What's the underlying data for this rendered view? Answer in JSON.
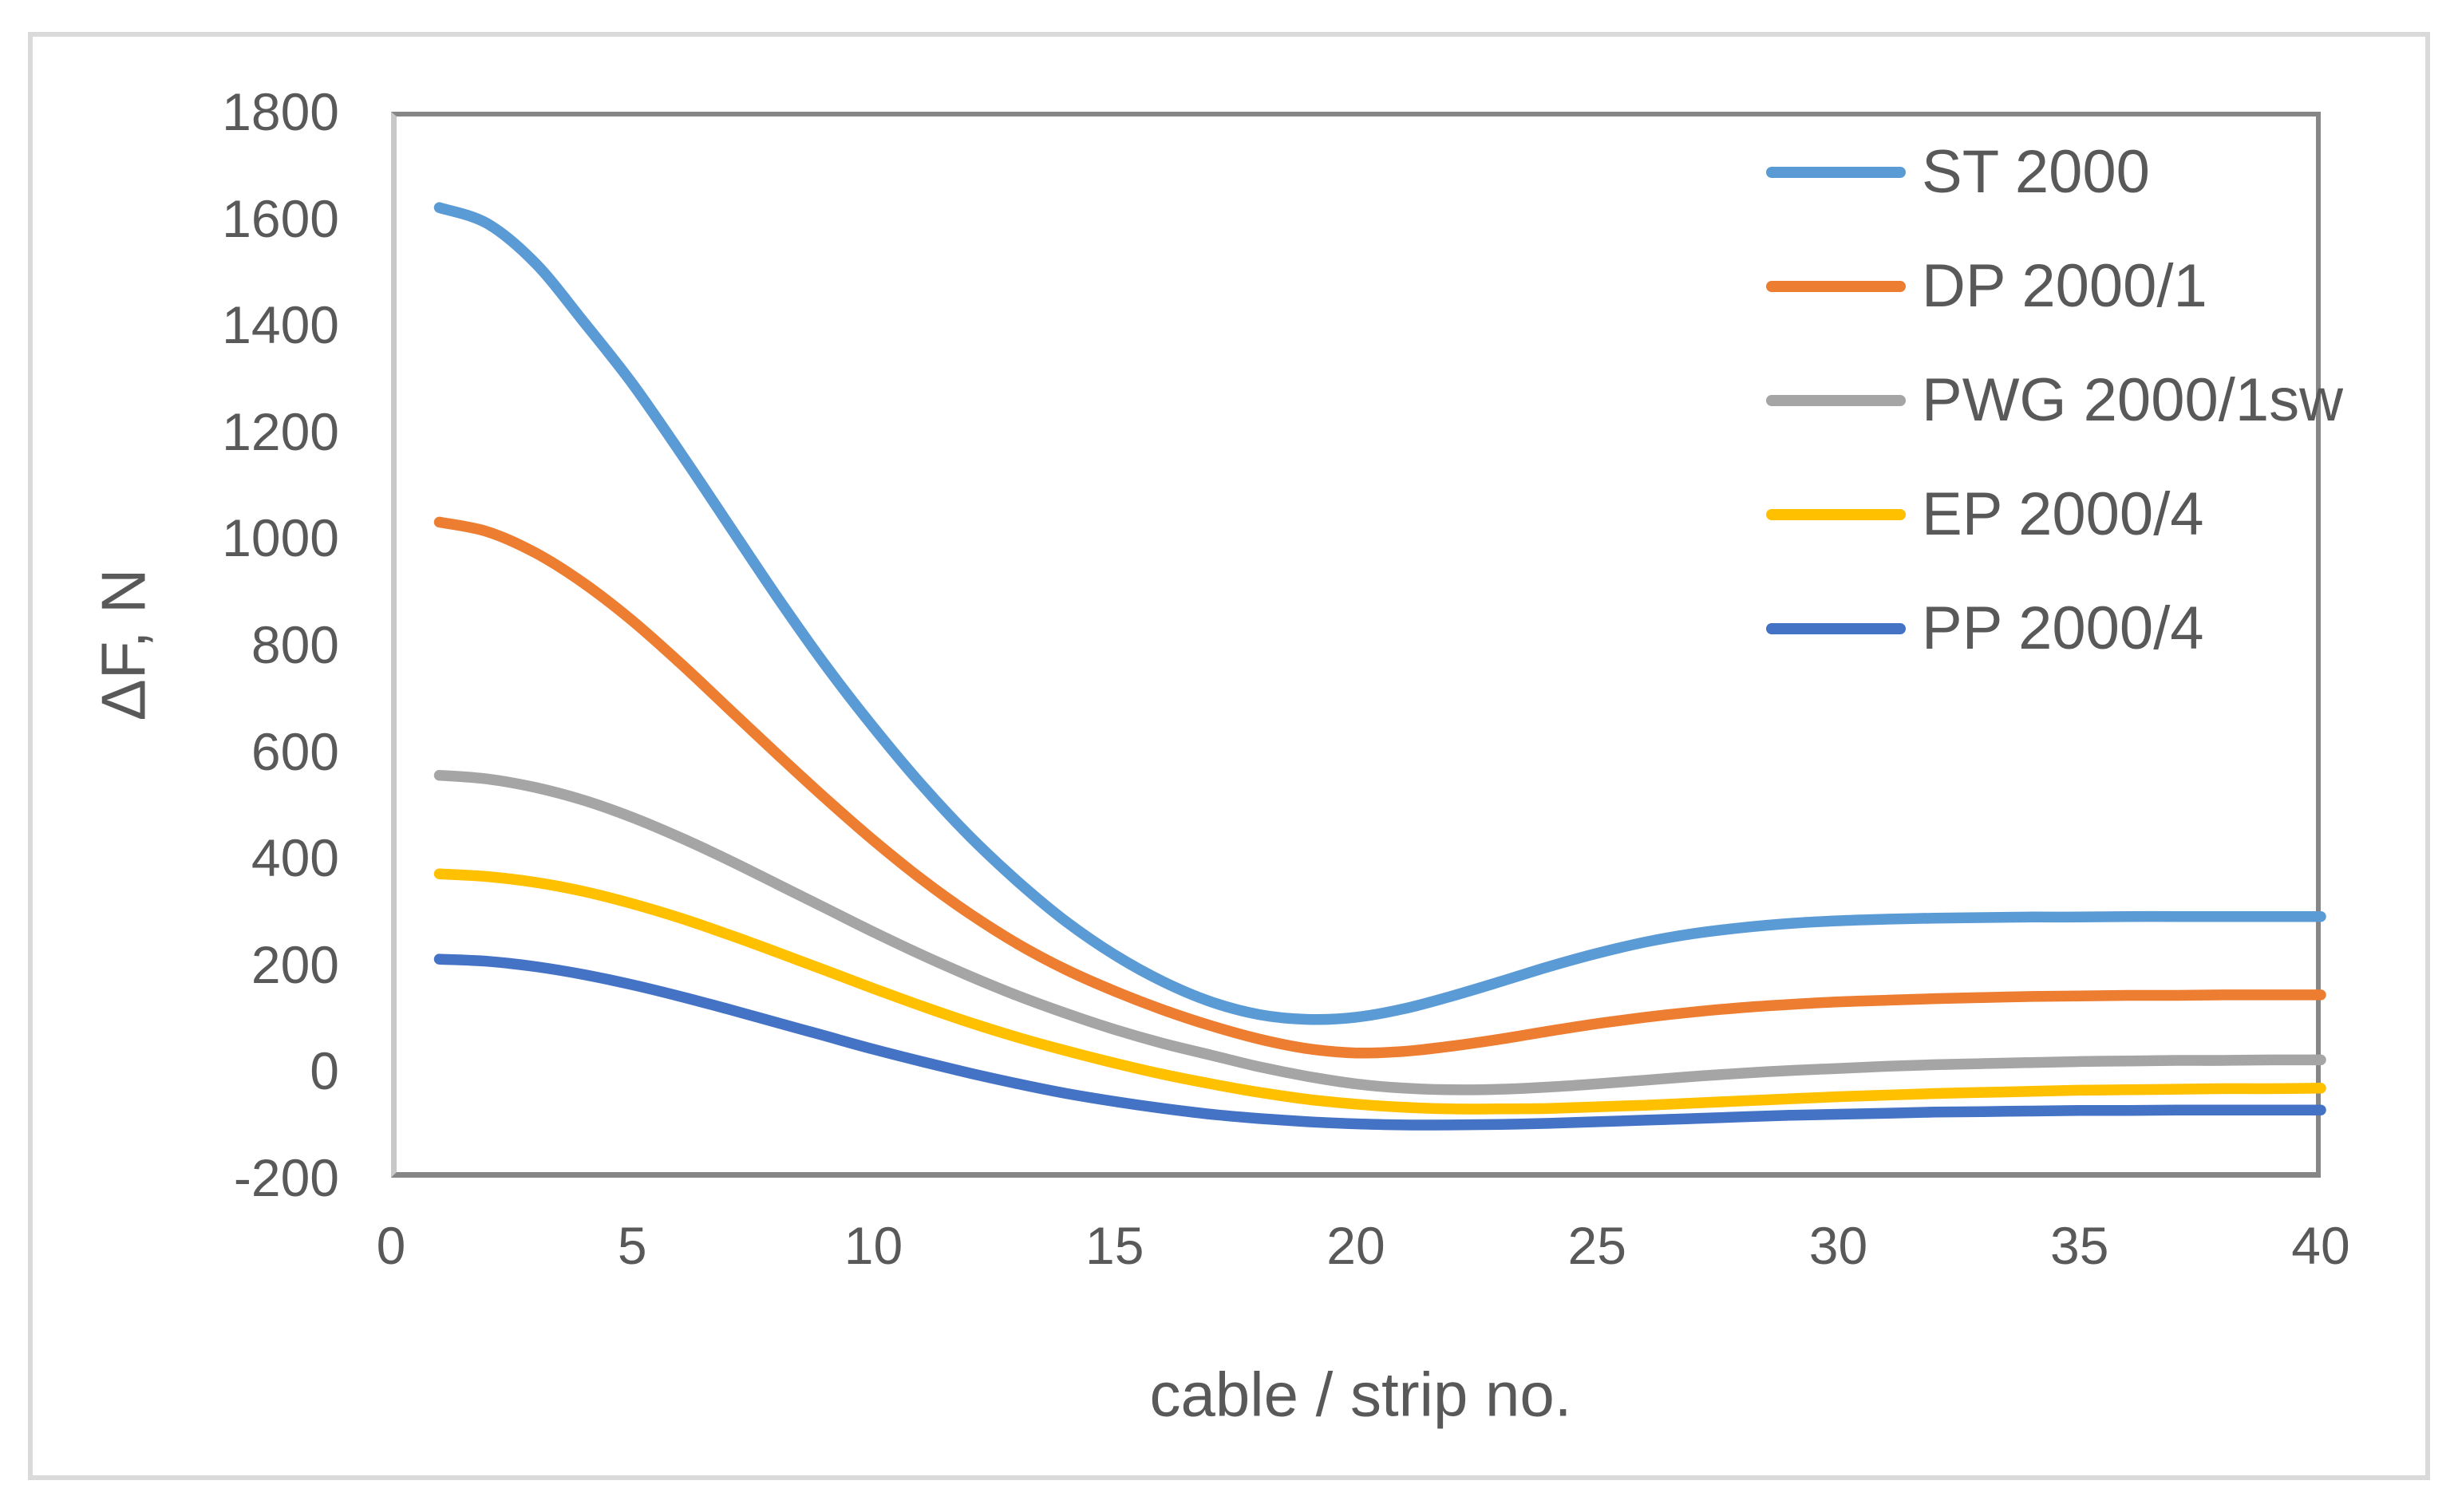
{
  "figure": {
    "background": "#ffffff",
    "border_color": "#dadada"
  },
  "chart_data": {
    "type": "line",
    "title": "",
    "xlabel": "cable / strip no.",
    "ylabel": "ΔF, N",
    "xlim": [
      0,
      40
    ],
    "ylim": [
      -200,
      1800
    ],
    "x_ticks": [
      0,
      5,
      10,
      15,
      20,
      25,
      30,
      35,
      40
    ],
    "y_ticks": [
      1800,
      1600,
      1400,
      1200,
      1000,
      800,
      600,
      400,
      200,
      0,
      -200
    ],
    "grid": false,
    "legend_position": "top-right-inside",
    "axis_line_color": "#868686",
    "y_axis_line_color": "#c8c8c8",
    "text_color": "#595959",
    "x": [
      1,
      2,
      3,
      4,
      5,
      6,
      7,
      8,
      9,
      10,
      11,
      12,
      13,
      14,
      15,
      16,
      17,
      18,
      19,
      20,
      21,
      22,
      23,
      24,
      25,
      26,
      27,
      28,
      29,
      30,
      31,
      32,
      33,
      34,
      35,
      36,
      37,
      38,
      39,
      40
    ],
    "series": [
      {
        "name": "ST 2000",
        "color": "#5B9BD5",
        "values": [
          1620,
          1590,
          1515,
          1405,
          1290,
          1160,
          1025,
          890,
          762,
          645,
          537,
          440,
          355,
          280,
          218,
          168,
          130,
          106,
          97,
          101,
          117,
          141,
          168,
          196,
          221,
          242,
          258,
          269,
          277,
          282,
          285,
          287,
          288,
          289,
          289,
          290,
          290,
          290,
          290,
          290
        ]
      },
      {
        "name": "DP 2000/1",
        "color": "#ED7D31",
        "values": [
          1030,
          1012,
          972,
          915,
          845,
          765,
          680,
          595,
          512,
          433,
          360,
          295,
          238,
          190,
          150,
          115,
          85,
          60,
          42,
          34,
          37,
          47,
          60,
          75,
          89,
          101,
          111,
          119,
          125,
          130,
          133,
          136,
          138,
          140,
          141,
          142,
          142,
          143,
          143,
          143
        ]
      },
      {
        "name": "PWG 2000/1sw",
        "color": "#A5A5A5",
        "values": [
          555,
          548,
          532,
          508,
          476,
          438,
          396,
          351,
          306,
          261,
          218,
          178,
          141,
          108,
          78,
          52,
          30,
          8,
          -10,
          -24,
          -32,
          -35,
          -34,
          -30,
          -24,
          -17,
          -10,
          -4,
          1,
          5,
          9,
          12,
          14,
          16,
          18,
          19,
          20,
          20,
          21,
          21
        ]
      },
      {
        "name": "EP 2000/4",
        "color": "#FFC000",
        "values": [
          370,
          365,
          354,
          337,
          314,
          287,
          256,
          223,
          189,
          155,
          122,
          91,
          63,
          38,
          15,
          -6,
          -24,
          -40,
          -53,
          -62,
          -68,
          -71,
          -71,
          -70,
          -67,
          -64,
          -60,
          -56,
          -52,
          -48,
          -45,
          -42,
          -40,
          -38,
          -36,
          -35,
          -34,
          -33,
          -33,
          -32
        ]
      },
      {
        "name": "PP 2000/4",
        "color": "#4472C4",
        "values": [
          210,
          206,
          196,
          181,
          162,
          140,
          116,
          91,
          66,
          41,
          18,
          -4,
          -24,
          -42,
          -57,
          -70,
          -81,
          -89,
          -95,
          -99,
          -101,
          -101,
          -100,
          -98,
          -95,
          -92,
          -89,
          -86,
          -83,
          -81,
          -79,
          -77,
          -76,
          -75,
          -74,
          -74,
          -73,
          -73,
          -73,
          -73
        ]
      }
    ]
  }
}
